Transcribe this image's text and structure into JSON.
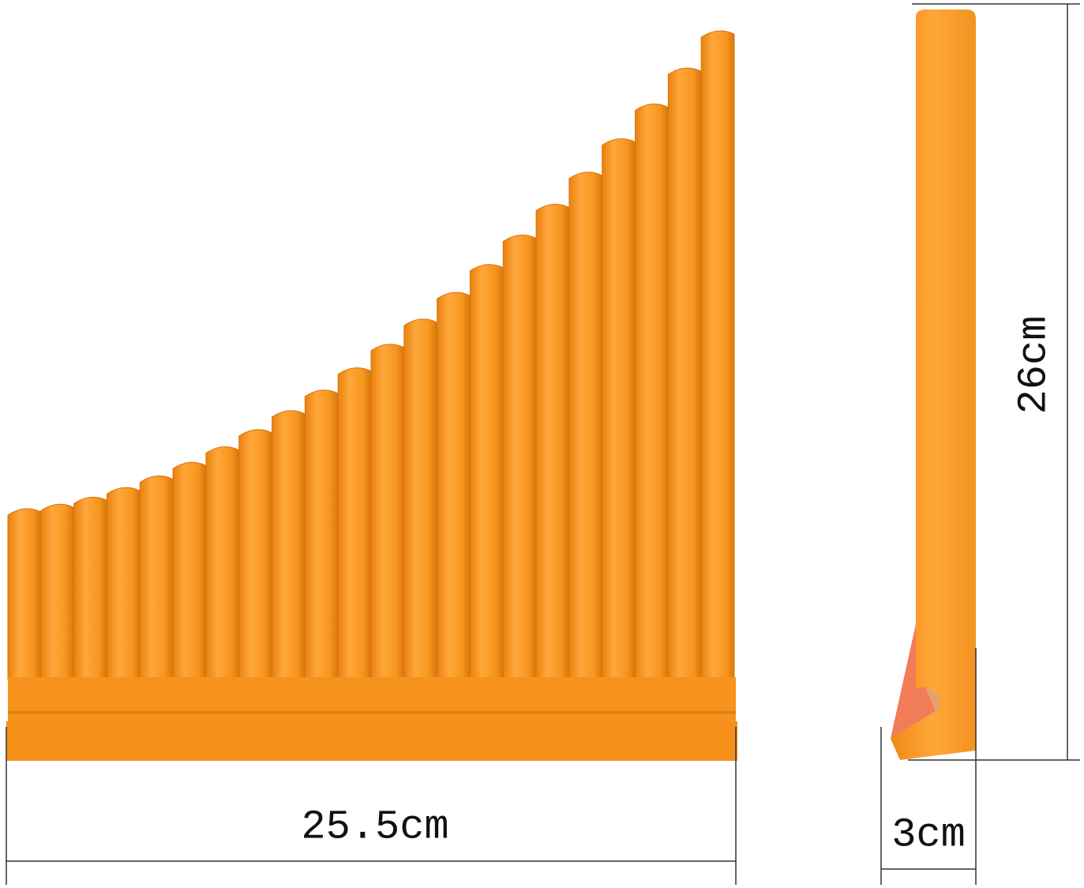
{
  "dimensions": {
    "width": "25.5cm",
    "depth": "3cm",
    "height": "26cm"
  }
}
